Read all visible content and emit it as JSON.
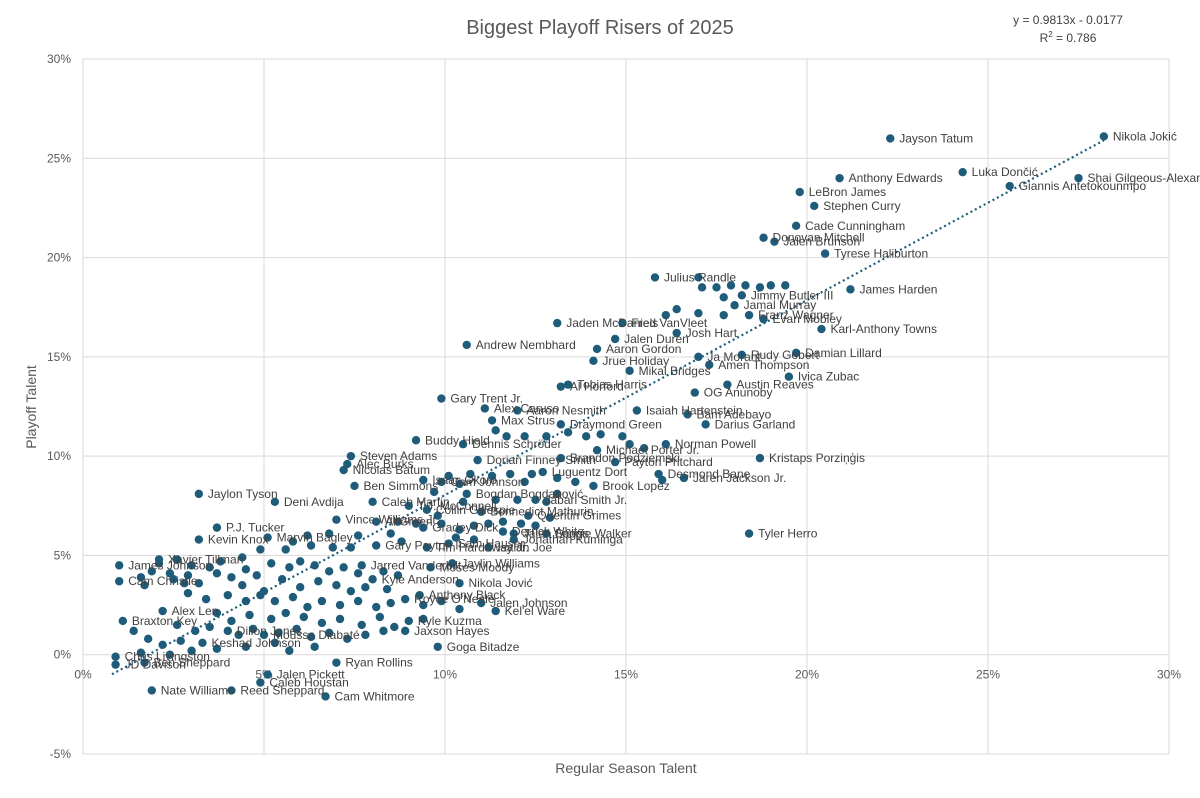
{
  "chart_data": {
    "type": "scatter",
    "title": "Biggest Playoff Risers of 2025",
    "xlabel": "Regular Season Talent",
    "ylabel": "Playoff Talent",
    "xlim": [
      0,
      0.3
    ],
    "ylim": [
      -0.05,
      0.3
    ],
    "x_ticks": [
      "0%",
      "5%",
      "10%",
      "15%",
      "20%",
      "25%",
      "30%"
    ],
    "y_ticks": [
      "-5%",
      "0%",
      "5%",
      "10%",
      "15%",
      "20%",
      "25%",
      "30%"
    ],
    "grid": true,
    "legend": "none",
    "trendline": {
      "equation": "y = 0.9813x - 0.0177",
      "r2_prefix": "R",
      "r2_exp": "2",
      "r2_suffix": " = 0.786",
      "slope": 0.9813,
      "intercept": -0.0177,
      "x_range": [
        0.008,
        0.282
      ]
    },
    "colors": {
      "points": "#1f5c7a",
      "grid": "#d9d9d9",
      "text": "#595959"
    },
    "labeled_points": [
      {
        "label": "Nikola Jokić",
        "x": 0.282,
        "y": 0.261
      },
      {
        "label": "Jayson Tatum",
        "x": 0.223,
        "y": 0.26
      },
      {
        "label": "Shai Gilgeous-Alexander",
        "x": 0.275,
        "y": 0.24
      },
      {
        "label": "Giannis Antetokounmpo",
        "x": 0.256,
        "y": 0.236
      },
      {
        "label": "Luka Dončić",
        "x": 0.243,
        "y": 0.243
      },
      {
        "label": "Anthony Edwards",
        "x": 0.209,
        "y": 0.24
      },
      {
        "label": "LeBron James",
        "x": 0.198,
        "y": 0.233
      },
      {
        "label": "Stephen Curry",
        "x": 0.202,
        "y": 0.226
      },
      {
        "label": "Cade Cunningham",
        "x": 0.197,
        "y": 0.216
      },
      {
        "label": "Donovan Mitchell",
        "x": 0.188,
        "y": 0.21
      },
      {
        "label": "Jalen Brunson",
        "x": 0.191,
        "y": 0.208
      },
      {
        "label": "Tyrese Haliburton",
        "x": 0.205,
        "y": 0.202
      },
      {
        "label": "Julius Randle",
        "x": 0.158,
        "y": 0.19
      },
      {
        "label": "Jimmy Butler III",
        "x": 0.182,
        "y": 0.181
      },
      {
        "label": "James Harden",
        "x": 0.212,
        "y": 0.184
      },
      {
        "label": "Jamal Murray",
        "x": 0.18,
        "y": 0.176
      },
      {
        "label": "Franz Wagner",
        "x": 0.184,
        "y": 0.171
      },
      {
        "label": "Evan Mobley",
        "x": 0.188,
        "y": 0.169
      },
      {
        "label": "Karl-Anthony Towns",
        "x": 0.204,
        "y": 0.164
      },
      {
        "label": "Jaden McDaniels",
        "x": 0.131,
        "y": 0.167
      },
      {
        "label": "Fred VanVleet",
        "x": 0.149,
        "y": 0.167
      },
      {
        "label": "Josh Hart",
        "x": 0.164,
        "y": 0.162
      },
      {
        "label": "Jalen Duren",
        "x": 0.147,
        "y": 0.159
      },
      {
        "label": "Andrew Nembhard",
        "x": 0.106,
        "y": 0.156
      },
      {
        "label": "Aaron Gordon",
        "x": 0.142,
        "y": 0.154
      },
      {
        "label": "Damian Lillard",
        "x": 0.197,
        "y": 0.152
      },
      {
        "label": "Rudy Gobert",
        "x": 0.182,
        "y": 0.151
      },
      {
        "label": "Ja Morant",
        "x": 0.17,
        "y": 0.15
      },
      {
        "label": "Jrue Holiday",
        "x": 0.141,
        "y": 0.148
      },
      {
        "label": "Amen Thompson",
        "x": 0.173,
        "y": 0.146
      },
      {
        "label": "Mikal Bridges",
        "x": 0.151,
        "y": 0.143
      },
      {
        "label": "Ivica Zubac",
        "x": 0.195,
        "y": 0.14
      },
      {
        "label": "Tobias Harris",
        "x": 0.134,
        "y": 0.136
      },
      {
        "label": "Al Horford",
        "x": 0.132,
        "y": 0.135
      },
      {
        "label": "Austin Reaves",
        "x": 0.178,
        "y": 0.136
      },
      {
        "label": "OG Anunoby",
        "x": 0.169,
        "y": 0.132
      },
      {
        "label": "Gary Trent Jr.",
        "x": 0.099,
        "y": 0.129
      },
      {
        "label": "Alex Caruso",
        "x": 0.111,
        "y": 0.124
      },
      {
        "label": "Aaron Nesmith",
        "x": 0.12,
        "y": 0.123
      },
      {
        "label": "Isaiah Hartenstein",
        "x": 0.153,
        "y": 0.123
      },
      {
        "label": "Bam Adebayo",
        "x": 0.167,
        "y": 0.121
      },
      {
        "label": "Max Strus",
        "x": 0.113,
        "y": 0.118
      },
      {
        "label": "Draymond Green",
        "x": 0.132,
        "y": 0.116
      },
      {
        "label": "Darius Garland",
        "x": 0.172,
        "y": 0.116
      },
      {
        "label": "Buddy Hield",
        "x": 0.092,
        "y": 0.108
      },
      {
        "label": "Dennis Schröder",
        "x": 0.105,
        "y": 0.106
      },
      {
        "label": "Norman Powell",
        "x": 0.161,
        "y": 0.106
      },
      {
        "label": "Michael Porter Jr.",
        "x": 0.142,
        "y": 0.103
      },
      {
        "label": "Steven Adams",
        "x": 0.074,
        "y": 0.1
      },
      {
        "label": "Brandon Podziemski",
        "x": 0.132,
        "y": 0.099
      },
      {
        "label": "Payton Pritchard",
        "x": 0.147,
        "y": 0.097
      },
      {
        "label": "Kristaps Porziņģis",
        "x": 0.187,
        "y": 0.099
      },
      {
        "label": "Alec Burks",
        "x": 0.073,
        "y": 0.096
      },
      {
        "label": "Dorian Finney-Smith",
        "x": 0.109,
        "y": 0.098
      },
      {
        "label": "Nicolas Batum",
        "x": 0.072,
        "y": 0.093
      },
      {
        "label": "Luguentz Dort",
        "x": 0.127,
        "y": 0.092
      },
      {
        "label": "Desmond Bane",
        "x": 0.159,
        "y": 0.091
      },
      {
        "label": "Jaren Jackson Jr.",
        "x": 0.166,
        "y": 0.089
      },
      {
        "label": "Isaac Okoro",
        "x": 0.094,
        "y": 0.088
      },
      {
        "label": "Cam Johnson",
        "x": 0.099,
        "y": 0.087
      },
      {
        "label": "Brook Lopez",
        "x": 0.141,
        "y": 0.085
      },
      {
        "label": "Ben Simmons",
        "x": 0.075,
        "y": 0.085
      },
      {
        "label": "Jaylon Tyson",
        "x": 0.032,
        "y": 0.081
      },
      {
        "label": "Bogdan Bogdanović",
        "x": 0.106,
        "y": 0.081
      },
      {
        "label": "Jabari Smith Jr.",
        "x": 0.125,
        "y": 0.078
      },
      {
        "label": "Caleb Martin",
        "x": 0.08,
        "y": 0.077
      },
      {
        "label": "Deni Avdija",
        "x": 0.053,
        "y": 0.077
      },
      {
        "label": "T.J. McConnell",
        "x": 0.09,
        "y": 0.075
      },
      {
        "label": "Collin Gillespie",
        "x": 0.095,
        "y": 0.073
      },
      {
        "label": "Bennedict Mathurin",
        "x": 0.11,
        "y": 0.072
      },
      {
        "label": "Quentin Grimes",
        "x": 0.123,
        "y": 0.07
      },
      {
        "label": "Vince Williams Jr.",
        "x": 0.07,
        "y": 0.068
      },
      {
        "label": "Al Green",
        "x": 0.081,
        "y": 0.067
      },
      {
        "label": "P.J. Tucker",
        "x": 0.037,
        "y": 0.064
      },
      {
        "label": "Gradey Dick",
        "x": 0.094,
        "y": 0.064
      },
      {
        "label": "Derrick White",
        "x": 0.116,
        "y": 0.062
      },
      {
        "label": "Jalen Suggs",
        "x": 0.119,
        "y": 0.061
      },
      {
        "label": "Lonnie Walker",
        "x": 0.128,
        "y": 0.061
      },
      {
        "label": "Tyler Herro",
        "x": 0.184,
        "y": 0.061
      },
      {
        "label": "Kevin Knox",
        "x": 0.032,
        "y": 0.058
      },
      {
        "label": "Marvin Bagley",
        "x": 0.051,
        "y": 0.059
      },
      {
        "label": "Jonathan Kuminga",
        "x": 0.119,
        "y": 0.058
      },
      {
        "label": "Gary Payton II",
        "x": 0.081,
        "y": 0.055
      },
      {
        "label": "Tim Hardaway Jr.",
        "x": 0.095,
        "y": 0.054
      },
      {
        "label": "Isaiah Joe",
        "x": 0.112,
        "y": 0.054
      },
      {
        "label": "Sam Hauser",
        "x": 0.101,
        "y": 0.056
      },
      {
        "label": "Xavier Tillman",
        "x": 0.021,
        "y": 0.048
      },
      {
        "label": "Jaylin Williams",
        "x": 0.102,
        "y": 0.046
      },
      {
        "label": "Moses Moody",
        "x": 0.096,
        "y": 0.044
      },
      {
        "label": "Jarred Vanderbilt",
        "x": 0.077,
        "y": 0.045
      },
      {
        "label": "James Johnson",
        "x": 0.01,
        "y": 0.045
      },
      {
        "label": "Nikola Jović",
        "x": 0.104,
        "y": 0.036
      },
      {
        "label": "Kyle Anderson",
        "x": 0.08,
        "y": 0.038
      },
      {
        "label": "Anthony Black",
        "x": 0.093,
        "y": 0.03
      },
      {
        "label": "Cam Christie",
        "x": 0.01,
        "y": 0.037
      },
      {
        "label": "Royce O'Neale",
        "x": 0.089,
        "y": 0.028
      },
      {
        "label": "Jalen Johnson",
        "x": 0.11,
        "y": 0.026
      },
      {
        "label": "Kel'el Ware",
        "x": 0.114,
        "y": 0.022
      },
      {
        "label": "Alex Len",
        "x": 0.022,
        "y": 0.022
      },
      {
        "label": "Braxton Key",
        "x": 0.011,
        "y": 0.017
      },
      {
        "label": "Kyle Kuzma",
        "x": 0.09,
        "y": 0.017
      },
      {
        "label": "Jaxson Hayes",
        "x": 0.089,
        "y": 0.012
      },
      {
        "label": "Goga Bitadze",
        "x": 0.098,
        "y": 0.004
      },
      {
        "label": "Moussa Diabaté",
        "x": 0.05,
        "y": 0.01
      },
      {
        "label": "Dillon Jones",
        "x": 0.04,
        "y": 0.012
      },
      {
        "label": "Keshad Johnson",
        "x": 0.033,
        "y": 0.006
      },
      {
        "label": "Ryan Rollins",
        "x": 0.07,
        "y": -0.004
      },
      {
        "label": "Jalen Pickett",
        "x": 0.051,
        "y": -0.01
      },
      {
        "label": "Caleb Houstan",
        "x": 0.049,
        "y": -0.014
      },
      {
        "label": "Cam Whitmore",
        "x": 0.067,
        "y": -0.021
      },
      {
        "label": "Nate Williams",
        "x": 0.019,
        "y": -0.018
      },
      {
        "label": "Reed Sheppard",
        "x": 0.041,
        "y": -0.018
      },
      {
        "label": "JD Davison",
        "x": 0.009,
        "y": -0.005
      },
      {
        "label": "Chris Livingston",
        "x": 0.009,
        "y": -0.001
      },
      {
        "label": "Ben Sheppard",
        "x": 0.017,
        "y": -0.004
      }
    ],
    "unlabeled_points": [
      {
        "x": 0.161,
        "y": 0.171
      },
      {
        "x": 0.164,
        "y": 0.174
      },
      {
        "x": 0.17,
        "y": 0.172
      },
      {
        "x": 0.175,
        "y": 0.185
      },
      {
        "x": 0.179,
        "y": 0.186
      },
      {
        "x": 0.183,
        "y": 0.186
      },
      {
        "x": 0.187,
        "y": 0.185
      },
      {
        "x": 0.19,
        "y": 0.186
      },
      {
        "x": 0.194,
        "y": 0.186
      },
      {
        "x": 0.171,
        "y": 0.185
      },
      {
        "x": 0.17,
        "y": 0.19
      },
      {
        "x": 0.177,
        "y": 0.171
      },
      {
        "x": 0.177,
        "y": 0.18
      },
      {
        "x": 0.149,
        "y": 0.11
      },
      {
        "x": 0.143,
        "y": 0.111
      },
      {
        "x": 0.139,
        "y": 0.11
      },
      {
        "x": 0.134,
        "y": 0.112
      },
      {
        "x": 0.128,
        "y": 0.11
      },
      {
        "x": 0.122,
        "y": 0.11
      },
      {
        "x": 0.117,
        "y": 0.11
      },
      {
        "x": 0.114,
        "y": 0.113
      },
      {
        "x": 0.155,
        "y": 0.104
      },
      {
        "x": 0.151,
        "y": 0.106
      },
      {
        "x": 0.16,
        "y": 0.088
      },
      {
        "x": 0.124,
        "y": 0.091
      },
      {
        "x": 0.122,
        "y": 0.087
      },
      {
        "x": 0.118,
        "y": 0.091
      },
      {
        "x": 0.113,
        "y": 0.09
      },
      {
        "x": 0.107,
        "y": 0.091
      },
      {
        "x": 0.104,
        "y": 0.086
      },
      {
        "x": 0.101,
        "y": 0.09
      },
      {
        "x": 0.097,
        "y": 0.082
      },
      {
        "x": 0.131,
        "y": 0.089
      },
      {
        "x": 0.136,
        "y": 0.087
      },
      {
        "x": 0.131,
        "y": 0.081
      },
      {
        "x": 0.128,
        "y": 0.077
      },
      {
        "x": 0.12,
        "y": 0.078
      },
      {
        "x": 0.114,
        "y": 0.078
      },
      {
        "x": 0.105,
        "y": 0.077
      },
      {
        "x": 0.098,
        "y": 0.07
      },
      {
        "x": 0.087,
        "y": 0.067
      },
      {
        "x": 0.092,
        "y": 0.066
      },
      {
        "x": 0.099,
        "y": 0.066
      },
      {
        "x": 0.104,
        "y": 0.063
      },
      {
        "x": 0.108,
        "y": 0.065
      },
      {
        "x": 0.112,
        "y": 0.066
      },
      {
        "x": 0.116,
        "y": 0.067
      },
      {
        "x": 0.121,
        "y": 0.066
      },
      {
        "x": 0.125,
        "y": 0.065
      },
      {
        "x": 0.129,
        "y": 0.069
      },
      {
        "x": 0.085,
        "y": 0.061
      },
      {
        "x": 0.076,
        "y": 0.06
      },
      {
        "x": 0.068,
        "y": 0.061
      },
      {
        "x": 0.062,
        "y": 0.06
      },
      {
        "x": 0.058,
        "y": 0.057
      },
      {
        "x": 0.063,
        "y": 0.055
      },
      {
        "x": 0.069,
        "y": 0.054
      },
      {
        "x": 0.074,
        "y": 0.054
      },
      {
        "x": 0.088,
        "y": 0.057
      },
      {
        "x": 0.103,
        "y": 0.059
      },
      {
        "x": 0.108,
        "y": 0.058
      },
      {
        "x": 0.056,
        "y": 0.053
      },
      {
        "x": 0.049,
        "y": 0.053
      },
      {
        "x": 0.044,
        "y": 0.049
      },
      {
        "x": 0.038,
        "y": 0.047
      },
      {
        "x": 0.035,
        "y": 0.044
      },
      {
        "x": 0.03,
        "y": 0.045
      },
      {
        "x": 0.026,
        "y": 0.048
      },
      {
        "x": 0.024,
        "y": 0.041
      },
      {
        "x": 0.019,
        "y": 0.042
      },
      {
        "x": 0.016,
        "y": 0.039
      },
      {
        "x": 0.017,
        "y": 0.035
      },
      {
        "x": 0.025,
        "y": 0.038
      },
      {
        "x": 0.029,
        "y": 0.04
      },
      {
        "x": 0.032,
        "y": 0.036
      },
      {
        "x": 0.037,
        "y": 0.041
      },
      {
        "x": 0.041,
        "y": 0.039
      },
      {
        "x": 0.045,
        "y": 0.043
      },
      {
        "x": 0.048,
        "y": 0.04
      },
      {
        "x": 0.052,
        "y": 0.046
      },
      {
        "x": 0.057,
        "y": 0.044
      },
      {
        "x": 0.06,
        "y": 0.047
      },
      {
        "x": 0.064,
        "y": 0.045
      },
      {
        "x": 0.068,
        "y": 0.042
      },
      {
        "x": 0.072,
        "y": 0.044
      },
      {
        "x": 0.076,
        "y": 0.041
      },
      {
        "x": 0.083,
        "y": 0.042
      },
      {
        "x": 0.087,
        "y": 0.04
      },
      {
        "x": 0.055,
        "y": 0.038
      },
      {
        "x": 0.06,
        "y": 0.034
      },
      {
        "x": 0.065,
        "y": 0.037
      },
      {
        "x": 0.07,
        "y": 0.035
      },
      {
        "x": 0.074,
        "y": 0.032
      },
      {
        "x": 0.078,
        "y": 0.034
      },
      {
        "x": 0.084,
        "y": 0.033
      },
      {
        "x": 0.029,
        "y": 0.031
      },
      {
        "x": 0.034,
        "y": 0.028
      },
      {
        "x": 0.04,
        "y": 0.03
      },
      {
        "x": 0.045,
        "y": 0.027
      },
      {
        "x": 0.049,
        "y": 0.03
      },
      {
        "x": 0.053,
        "y": 0.027
      },
      {
        "x": 0.058,
        "y": 0.029
      },
      {
        "x": 0.062,
        "y": 0.024
      },
      {
        "x": 0.066,
        "y": 0.027
      },
      {
        "x": 0.071,
        "y": 0.025
      },
      {
        "x": 0.076,
        "y": 0.027
      },
      {
        "x": 0.081,
        "y": 0.024
      },
      {
        "x": 0.085,
        "y": 0.026
      },
      {
        "x": 0.094,
        "y": 0.025
      },
      {
        "x": 0.099,
        "y": 0.027
      },
      {
        "x": 0.104,
        "y": 0.023
      },
      {
        "x": 0.037,
        "y": 0.021
      },
      {
        "x": 0.041,
        "y": 0.017
      },
      {
        "x": 0.046,
        "y": 0.02
      },
      {
        "x": 0.052,
        "y": 0.018
      },
      {
        "x": 0.056,
        "y": 0.021
      },
      {
        "x": 0.061,
        "y": 0.019
      },
      {
        "x": 0.066,
        "y": 0.016
      },
      {
        "x": 0.071,
        "y": 0.018
      },
      {
        "x": 0.077,
        "y": 0.015
      },
      {
        "x": 0.082,
        "y": 0.019
      },
      {
        "x": 0.086,
        "y": 0.014
      },
      {
        "x": 0.094,
        "y": 0.018
      },
      {
        "x": 0.026,
        "y": 0.015
      },
      {
        "x": 0.031,
        "y": 0.012
      },
      {
        "x": 0.035,
        "y": 0.014
      },
      {
        "x": 0.043,
        "y": 0.01
      },
      {
        "x": 0.047,
        "y": 0.013
      },
      {
        "x": 0.054,
        "y": 0.011
      },
      {
        "x": 0.059,
        "y": 0.013
      },
      {
        "x": 0.063,
        "y": 0.009
      },
      {
        "x": 0.068,
        "y": 0.011
      },
      {
        "x": 0.073,
        "y": 0.008
      },
      {
        "x": 0.078,
        "y": 0.01
      },
      {
        "x": 0.083,
        "y": 0.012
      },
      {
        "x": 0.014,
        "y": 0.012
      },
      {
        "x": 0.018,
        "y": 0.008
      },
      {
        "x": 0.022,
        "y": 0.005
      },
      {
        "x": 0.027,
        "y": 0.007
      },
      {
        "x": 0.03,
        "y": 0.002
      },
      {
        "x": 0.037,
        "y": 0.003
      },
      {
        "x": 0.045,
        "y": 0.004
      },
      {
        "x": 0.053,
        "y": 0.006
      },
      {
        "x": 0.057,
        "y": 0.002
      },
      {
        "x": 0.064,
        "y": 0.004
      },
      {
        "x": 0.016,
        "y": 0.001
      },
      {
        "x": 0.024,
        "y": 0.0
      },
      {
        "x": 0.028,
        "y": 0.036
      },
      {
        "x": 0.021,
        "y": 0.046
      },
      {
        "x": 0.044,
        "y": 0.035
      },
      {
        "x": 0.05,
        "y": 0.032
      }
    ]
  }
}
